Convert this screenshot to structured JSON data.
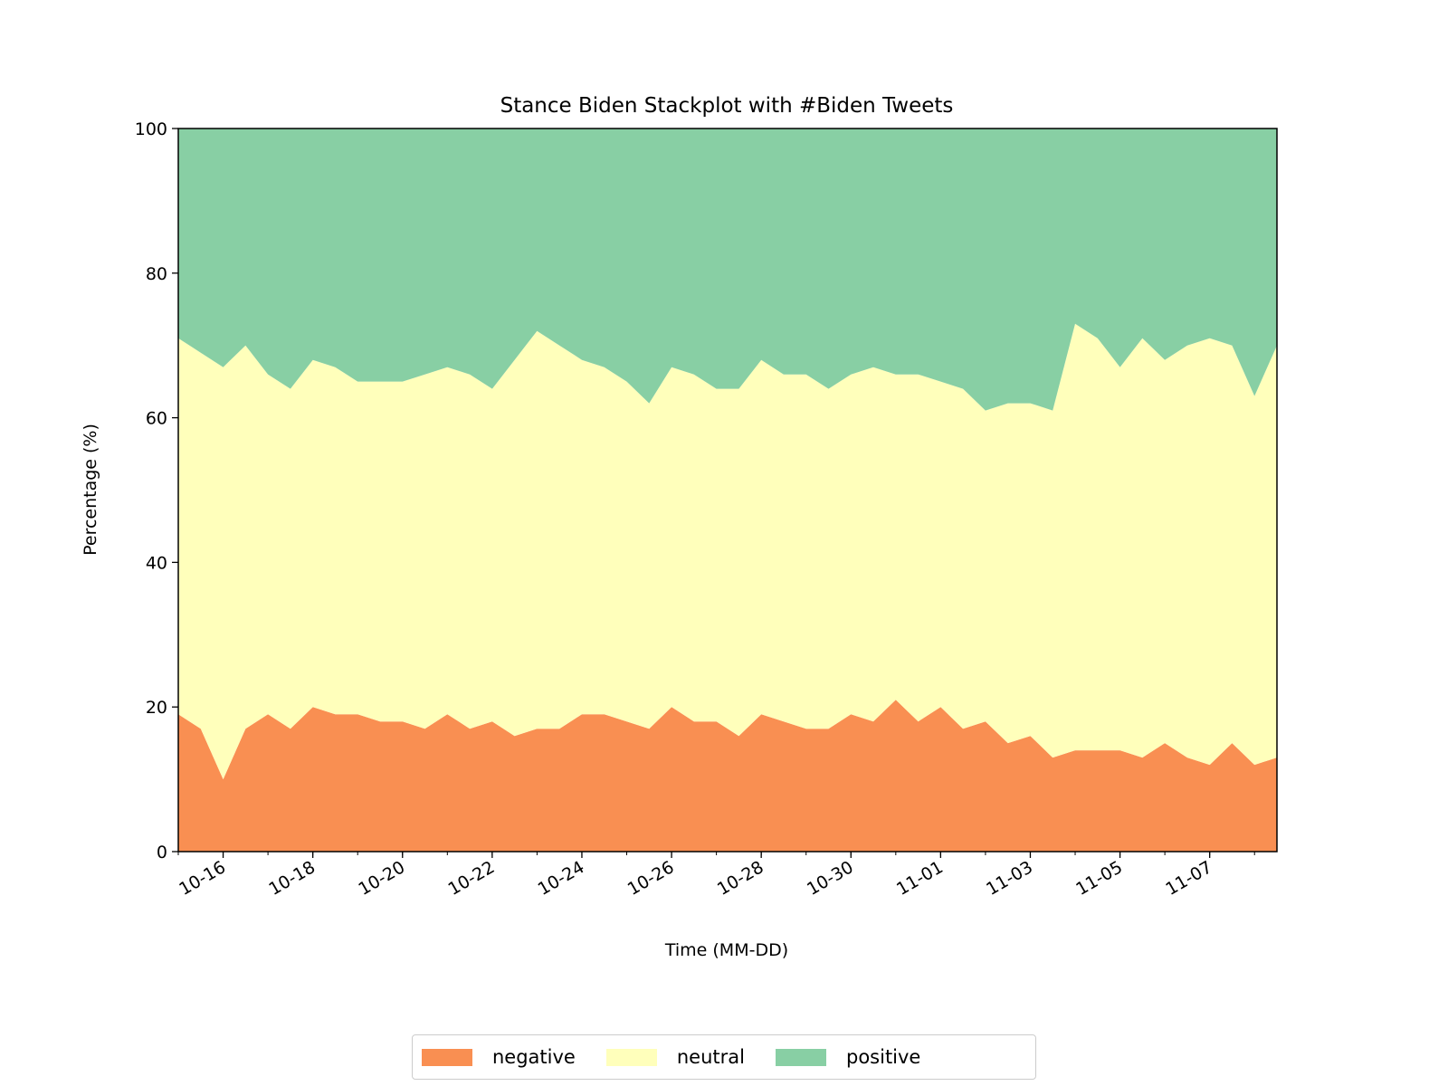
{
  "chart_data": {
    "type": "area",
    "stacked": true,
    "title": "Stance Biden Stackplot with #Biden Tweets",
    "xlabel": "Time (MM-DD)",
    "ylabel": "Percentage (%)",
    "ylim": [
      0,
      100
    ],
    "yticks": [
      0,
      20,
      40,
      60,
      80,
      100
    ],
    "x_range": [
      "10-15",
      "11-08"
    ],
    "xticks": [
      "10-16",
      "10-18",
      "10-20",
      "10-22",
      "10-24",
      "10-26",
      "10-28",
      "10-30",
      "11-01",
      "11-03",
      "11-05",
      "11-07"
    ],
    "legend_position": "below-center",
    "grid": false,
    "x": [
      "10-15",
      "10-15 12h",
      "10-16",
      "10-16 12h",
      "10-17",
      "10-17 12h",
      "10-18",
      "10-18 12h",
      "10-19",
      "10-19 12h",
      "10-20",
      "10-20 12h",
      "10-21",
      "10-21 12h",
      "10-22",
      "10-22 12h",
      "10-23",
      "10-23 12h",
      "10-24",
      "10-24 12h",
      "10-25",
      "10-25 12h",
      "10-26",
      "10-26 12h",
      "10-27",
      "10-27 12h",
      "10-28",
      "10-28 12h",
      "10-29",
      "10-29 12h",
      "10-30",
      "10-30 12h",
      "10-31",
      "10-31 12h",
      "11-01",
      "11-01 12h",
      "11-02",
      "11-02 12h",
      "11-03",
      "11-03 12h",
      "11-04",
      "11-04 12h",
      "11-05",
      "11-05 12h",
      "11-06",
      "11-06 12h",
      "11-07",
      "11-07 12h",
      "11-08",
      "11-08 12h"
    ],
    "series": [
      {
        "name": "negative",
        "color": "#f98f52",
        "values": [
          19,
          17,
          10,
          17,
          19,
          17,
          20,
          19,
          19,
          18,
          18,
          17,
          19,
          17,
          18,
          16,
          17,
          17,
          19,
          19,
          18,
          17,
          20,
          18,
          18,
          16,
          19,
          18,
          17,
          17,
          19,
          18,
          21,
          18,
          20,
          17,
          18,
          15,
          16,
          13,
          14,
          14,
          14,
          13,
          15,
          13,
          12,
          15,
          12,
          13
        ]
      },
      {
        "name": "neutral",
        "color": "#ffffbb",
        "values": [
          52,
          52,
          57,
          53,
          47,
          47,
          48,
          48,
          46,
          47,
          47,
          49,
          48,
          49,
          46,
          52,
          55,
          53,
          49,
          48,
          47,
          45,
          47,
          48,
          46,
          48,
          49,
          48,
          49,
          47,
          47,
          49,
          45,
          48,
          45,
          47,
          43,
          47,
          46,
          48,
          59,
          57,
          53,
          58,
          53,
          57,
          59,
          55,
          51,
          57
        ]
      },
      {
        "name": "positive",
        "color": "#88cfa4",
        "values": [
          29,
          31,
          33,
          30,
          34,
          36,
          32,
          33,
          35,
          35,
          35,
          34,
          33,
          34,
          36,
          32,
          28,
          30,
          32,
          33,
          35,
          38,
          33,
          34,
          36,
          36,
          32,
          34,
          34,
          36,
          34,
          33,
          34,
          34,
          35,
          36,
          39,
          38,
          38,
          39,
          27,
          29,
          33,
          29,
          32,
          30,
          29,
          30,
          37,
          30
        ]
      }
    ]
  }
}
